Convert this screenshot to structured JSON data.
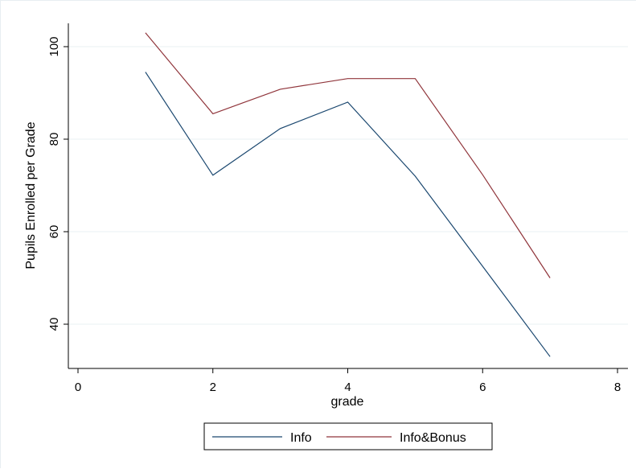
{
  "chart_data": {
    "type": "line",
    "title": "",
    "xlabel": "grade",
    "ylabel": "Pupils Enrolled per Grade",
    "xlim": [
      0,
      8
    ],
    "ylim": [
      32,
      105
    ],
    "xticks": [
      0,
      2,
      4,
      6,
      8
    ],
    "yticks": [
      40,
      60,
      80,
      100
    ],
    "grid": true,
    "legend_position": "bottom",
    "x": [
      1,
      2,
      3,
      4,
      5,
      6,
      7
    ],
    "series": [
      {
        "name": "Info",
        "color": "#1a476f",
        "values": [
          94.5,
          72.2,
          82.3,
          88.0,
          72.0,
          52.5,
          33.0
        ]
      },
      {
        "name": "Info&Bonus",
        "color": "#90353b",
        "values": [
          103.0,
          85.5,
          90.8,
          93.1,
          93.1,
          72.3,
          50.0
        ]
      }
    ]
  }
}
